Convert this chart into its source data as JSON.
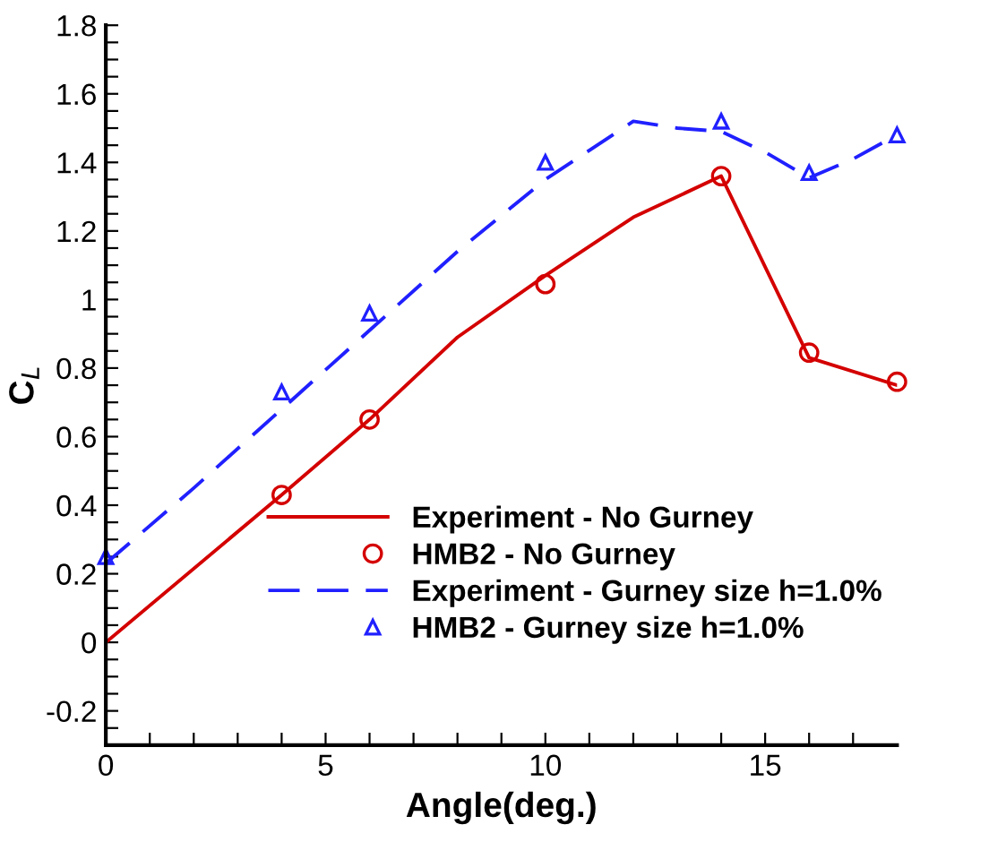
{
  "chart_data": {
    "type": "line",
    "xlabel": "Angle(deg.)",
    "ylabel": "C$_{L}$",
    "xlim": [
      0,
      18
    ],
    "ylim": [
      -0.3,
      1.8
    ],
    "xticks": [
      0,
      {
        "value": 1,
        "label": null
      },
      {
        "value": 2,
        "label": null
      },
      {
        "value": 3,
        "label": null
      },
      {
        "value": 4,
        "label": null
      },
      5,
      {
        "value": 6,
        "label": null
      },
      {
        "value": 7,
        "label": null
      },
      {
        "value": 8,
        "label": null
      },
      {
        "value": 9,
        "label": null
      },
      10,
      {
        "value": 11,
        "label": null
      },
      {
        "value": 12,
        "label": null
      },
      {
        "value": 13,
        "label": null
      },
      {
        "value": 14,
        "label": null
      },
      15,
      {
        "value": 16,
        "label": null
      },
      {
        "value": 17,
        "label": null
      }
    ],
    "yticks": [
      {
        "value": -0.25,
        "label": null
      },
      -0.2,
      {
        "value": -0.15,
        "label": null
      },
      {
        "value": -0.1,
        "label": null
      },
      {
        "value": -0.05,
        "label": null
      },
      0,
      {
        "value": 0.05,
        "label": null
      },
      {
        "value": 0.1,
        "label": null
      },
      {
        "value": 0.15,
        "label": null
      },
      0.2,
      {
        "value": 0.25,
        "label": null
      },
      {
        "value": 0.3,
        "label": null
      },
      {
        "value": 0.35,
        "label": null
      },
      0.4,
      {
        "value": 0.45,
        "label": null
      },
      {
        "value": 0.5,
        "label": null
      },
      {
        "value": 0.55,
        "label": null
      },
      0.6,
      {
        "value": 0.65,
        "label": null
      },
      {
        "value": 0.7,
        "label": null
      },
      {
        "value": 0.75,
        "label": null
      },
      0.8,
      {
        "value": 0.85,
        "label": null
      },
      {
        "value": 0.9,
        "label": null
      },
      {
        "value": 0.95,
        "label": null
      },
      1,
      {
        "value": 1.05,
        "label": null
      },
      {
        "value": 1.1,
        "label": null
      },
      {
        "value": 1.15,
        "label": null
      },
      1.2,
      {
        "value": 1.25,
        "label": null
      },
      {
        "value": 1.3,
        "label": null
      },
      {
        "value": 1.35,
        "label": null
      },
      1.4,
      {
        "value": 1.45,
        "label": null
      },
      {
        "value": 1.5,
        "label": null
      },
      {
        "value": 1.55,
        "label": null
      },
      1.6,
      {
        "value": 1.65,
        "label": null
      },
      {
        "value": 1.7,
        "label": null
      },
      {
        "value": 1.75,
        "label": null
      },
      1.8
    ],
    "grid": false,
    "legend": "bottom right",
    "series": [
      {
        "name": "Experiment - No Gurney",
        "line_style": "solid",
        "marker": "none",
        "color": "#d40000",
        "x": [
          0,
          4,
          6,
          8,
          10,
          12,
          14,
          16,
          18
        ],
        "values": [
          0,
          0.43,
          0.65,
          0.89,
          1.07,
          1.24,
          1.36,
          0.83,
          0.75
        ]
      },
      {
        "name": "HMB2 - No Gurney",
        "type": "scatter",
        "marker": "circle",
        "color": "#d40000",
        "x": [
          4,
          6,
          10,
          14,
          16,
          18
        ],
        "values": [
          0.43,
          0.65,
          1.045,
          1.36,
          0.845,
          0.76
        ]
      },
      {
        "name": "Experiment - Gurney size h=1.0%",
        "line_style": "dashed",
        "marker": "none",
        "color": "#2020ff",
        "x": [
          0,
          2,
          4,
          6,
          8,
          10,
          12,
          13,
          14,
          15,
          16,
          17,
          18
        ],
        "values": [
          0.23,
          0.45,
          0.68,
          0.91,
          1.14,
          1.35,
          1.52,
          1.5,
          1.49,
          1.43,
          1.355,
          1.41,
          1.48
        ]
      },
      {
        "name": "HMB2 - Gurney size h=1.0%",
        "type": "scatter",
        "marker": "triangle",
        "color": "#2020ff",
        "x": [
          0,
          4,
          6,
          10,
          14,
          16,
          18
        ],
        "values": [
          0.25,
          0.73,
          0.96,
          1.4,
          1.52,
          1.37,
          1.48
        ]
      }
    ]
  }
}
